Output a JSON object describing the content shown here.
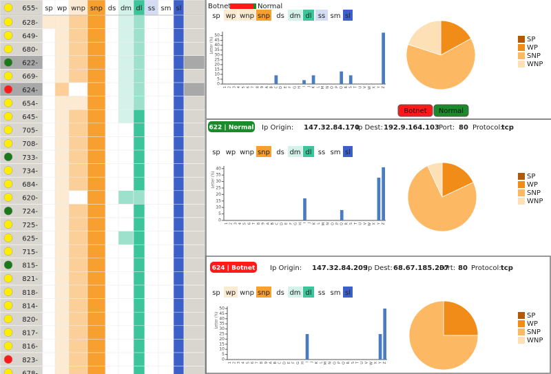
{
  "legend": {
    "botnet": "Botnet",
    "normal": "Normal",
    "botnet_color": "#ff1a1a",
    "normal_color": "#1a8a2a"
  },
  "filter_buttons": [
    {
      "label": "Botnet",
      "color": "#ff1a1a"
    },
    {
      "label": "Normal",
      "color": "#1a8a2a"
    }
  ],
  "table": {
    "columns": [
      "sp",
      "wp",
      "wnp",
      "snp",
      "ds",
      "dm",
      "dl",
      "ss",
      "sm",
      "sl"
    ],
    "column_colors": [
      "#f7a030",
      "#f7a030",
      "#f7a030",
      "#f7a030",
      "#3cc49a",
      "#3cc49a",
      "#3cc49a",
      "#3c60c8",
      "#3c60c8",
      "#3c60c8"
    ],
    "header": {
      "id": "655-",
      "status": "#ffee00",
      "levels": [
        0,
        0,
        1,
        3,
        0,
        1,
        3,
        1,
        0,
        3
      ]
    },
    "rows": [
      {
        "id": "628-",
        "status": "#ffee00",
        "levels": [
          1,
          1,
          2,
          3,
          0,
          1,
          2,
          0,
          0,
          3
        ]
      },
      {
        "id": "649-",
        "status": "#ffee00",
        "levels": [
          0,
          1,
          2,
          3,
          0,
          1,
          2,
          0,
          0,
          3
        ]
      },
      {
        "id": "680-",
        "status": "#ffee00",
        "levels": [
          0,
          1,
          2,
          3,
          0,
          1,
          2,
          0,
          0,
          3
        ]
      },
      {
        "id": "622-",
        "status": "#1a7a1a",
        "levels": [
          0,
          1,
          2,
          3,
          0,
          1,
          2,
          0,
          0,
          3
        ],
        "selected": true
      },
      {
        "id": "669-",
        "status": "#ffee00",
        "levels": [
          0,
          1,
          2,
          3,
          0,
          1,
          2,
          0,
          0,
          3
        ]
      },
      {
        "id": "624-",
        "status": "#ff1a1a",
        "levels": [
          0,
          2,
          0,
          3,
          0,
          1,
          2,
          0,
          0,
          3
        ],
        "selected": true
      },
      {
        "id": "654-",
        "status": "#ffee00",
        "levels": [
          0,
          1,
          1,
          3,
          0,
          1,
          2,
          0,
          0,
          3
        ]
      },
      {
        "id": "645-",
        "status": "#ffee00",
        "levels": [
          0,
          1,
          2,
          3,
          0,
          1,
          3,
          0,
          0,
          3
        ]
      },
      {
        "id": "705-",
        "status": "#ffee00",
        "levels": [
          0,
          1,
          2,
          3,
          0,
          0,
          3,
          0,
          0,
          3
        ]
      },
      {
        "id": "708-",
        "status": "#ffee00",
        "levels": [
          0,
          1,
          2,
          3,
          0,
          0,
          3,
          0,
          0,
          3
        ]
      },
      {
        "id": "733-",
        "status": "#1a7a1a",
        "levels": [
          0,
          1,
          2,
          3,
          0,
          0,
          3,
          0,
          0,
          3
        ]
      },
      {
        "id": "734-",
        "status": "#ffee00",
        "levels": [
          0,
          1,
          2,
          3,
          0,
          0,
          3,
          0,
          0,
          3
        ]
      },
      {
        "id": "684-",
        "status": "#ffee00",
        "levels": [
          0,
          1,
          2,
          3,
          0,
          0,
          3,
          0,
          0,
          3
        ]
      },
      {
        "id": "620-",
        "status": "#ffee00",
        "levels": [
          0,
          1,
          0,
          3,
          0,
          2,
          2,
          0,
          0,
          3
        ]
      },
      {
        "id": "724-",
        "status": "#1a7a1a",
        "levels": [
          0,
          1,
          2,
          3,
          0,
          0,
          3,
          0,
          0,
          3
        ]
      },
      {
        "id": "725-",
        "status": "#ffee00",
        "levels": [
          0,
          1,
          2,
          3,
          0,
          0,
          3,
          0,
          0,
          3
        ]
      },
      {
        "id": "625-",
        "status": "#ffee00",
        "levels": [
          0,
          1,
          2,
          3,
          0,
          2,
          3,
          0,
          0,
          3
        ]
      },
      {
        "id": "715-",
        "status": "#ffee00",
        "levels": [
          0,
          1,
          2,
          3,
          0,
          0,
          3,
          0,
          0,
          3
        ]
      },
      {
        "id": "815-",
        "status": "#1a7a1a",
        "levels": [
          0,
          1,
          2,
          3,
          0,
          0,
          3,
          0,
          0,
          3
        ]
      },
      {
        "id": "821-",
        "status": "#ffee00",
        "levels": [
          0,
          1,
          2,
          3,
          0,
          0,
          3,
          0,
          0,
          3
        ]
      },
      {
        "id": "818-",
        "status": "#ffee00",
        "levels": [
          0,
          1,
          2,
          3,
          0,
          0,
          3,
          0,
          0,
          3
        ]
      },
      {
        "id": "814-",
        "status": "#ffee00",
        "levels": [
          0,
          1,
          2,
          3,
          0,
          0,
          3,
          0,
          0,
          3
        ]
      },
      {
        "id": "820-",
        "status": "#ffee00",
        "levels": [
          0,
          1,
          2,
          3,
          0,
          0,
          3,
          0,
          0,
          3
        ]
      },
      {
        "id": "817-",
        "status": "#ffee00",
        "levels": [
          0,
          1,
          2,
          3,
          0,
          0,
          3,
          0,
          0,
          3
        ]
      },
      {
        "id": "816-",
        "status": "#ffee00",
        "levels": [
          0,
          1,
          2,
          3,
          0,
          0,
          3,
          0,
          0,
          3
        ]
      },
      {
        "id": "823-",
        "status": "#ff1a1a",
        "levels": [
          0,
          1,
          2,
          3,
          0,
          0,
          3,
          0,
          0,
          3
        ]
      },
      {
        "id": "678-",
        "status": "#ffee00",
        "levels": [
          0,
          1,
          2,
          3,
          0,
          0,
          3,
          0,
          0,
          3
        ]
      }
    ]
  },
  "panels": [
    {
      "toggle_levels": [
        0,
        1,
        1,
        2,
        0,
        1,
        2,
        1,
        0,
        2
      ]
    },
    {
      "toggle_levels": [
        0,
        0,
        0,
        2,
        0,
        1,
        2,
        0,
        0,
        2
      ]
    },
    {
      "toggle_levels": [
        0,
        1,
        0,
        2,
        0,
        1,
        2,
        0,
        0,
        2
      ]
    }
  ],
  "details": [
    {
      "badge": "622 | Normal",
      "color": "#1a8a2a",
      "fields": [
        {
          "label": "Ip Origin:",
          "value": "147.32.84.170"
        },
        {
          "label": "Ip Dest:",
          "value": "192.9.164.103"
        },
        {
          "label": "Port:",
          "value": "80"
        },
        {
          "label": "Protocol:",
          "value": "tcp"
        }
      ]
    },
    {
      "badge": "624 | Botnet",
      "color": "#ff1a1a",
      "fields": [
        {
          "label": "Ip Origin:",
          "value": "147.32.84.209"
        },
        {
          "label": "Ip Dest:",
          "value": "68.67.185.207"
        },
        {
          "label": "Port:",
          "value": "80"
        },
        {
          "label": "Protocol:",
          "value": "tcp"
        }
      ]
    }
  ],
  "chart_data": [
    {
      "type": "bar",
      "y_label": "Letter (%)",
      "color": "#4a7cc0",
      "categories": [
        "1",
        "2",
        "3",
        "4",
        "5",
        "6",
        "7",
        "8",
        "9",
        "A",
        "B",
        "C",
        "D",
        "E",
        "F",
        "G",
        "H",
        "I",
        "J",
        "K",
        "L",
        "M",
        "N",
        "O",
        "P",
        "Q",
        "R",
        "S",
        "T",
        "U",
        "V",
        "W",
        "X",
        "Y",
        "Z"
      ],
      "values": [
        0,
        0,
        0,
        0,
        0,
        0,
        0,
        0,
        0,
        0,
        0,
        9,
        0,
        0,
        0,
        0,
        0,
        4,
        0,
        9,
        0,
        0,
        0,
        0,
        0,
        13,
        0,
        9,
        0,
        0,
        0,
        0,
        0,
        0,
        53
      ],
      "ylim": [
        0,
        54
      ],
      "yticks": [
        0,
        5,
        10,
        15,
        20,
        25,
        30,
        35,
        40,
        45,
        50
      ]
    },
    {
      "type": "pie",
      "categories": [
        "SP",
        "WP",
        "SNP",
        "WNP"
      ],
      "values": [
        0,
        17,
        63,
        20
      ],
      "colors": [
        "#b35806",
        "#f28c18",
        "#fdb863",
        "#fee0b6"
      ]
    },
    {
      "type": "bar",
      "y_label": "Letter (%)",
      "color": "#4a7cc0",
      "categories": [
        "1",
        "2",
        "3",
        "4",
        "5",
        "6",
        "7",
        "8",
        "9",
        "A",
        "B",
        "C",
        "D",
        "E",
        "F",
        "G",
        "H",
        "I",
        "J",
        "K",
        "L",
        "M",
        "N",
        "O",
        "P",
        "Q",
        "R",
        "S",
        "T",
        "U",
        "V",
        "W",
        "X",
        "Y",
        "Z"
      ],
      "values": [
        0,
        0,
        0,
        0,
        0,
        0,
        0,
        0,
        0,
        0,
        0,
        0,
        0,
        0,
        0,
        0,
        0,
        17,
        0,
        0,
        0,
        0,
        0,
        0,
        0,
        8,
        0,
        0,
        0,
        0,
        0,
        0,
        0,
        33,
        41
      ],
      "ylim": [
        0,
        42
      ],
      "yticks": [
        0,
        5,
        10,
        15,
        20,
        25,
        30,
        35,
        40
      ]
    },
    {
      "type": "pie",
      "categories": [
        "SP",
        "WP",
        "SNP",
        "WNP"
      ],
      "values": [
        0,
        18,
        75,
        7
      ],
      "colors": [
        "#b35806",
        "#f28c18",
        "#fdb863",
        "#fee0b6"
      ]
    },
    {
      "type": "bar",
      "y_label": "Letter (%)",
      "color": "#4a7cc0",
      "categories": [
        "1",
        "2",
        "3",
        "4",
        "5",
        "6",
        "7",
        "8",
        "9",
        "A",
        "B",
        "C",
        "D",
        "E",
        "F",
        "G",
        "H",
        "I",
        "J",
        "K",
        "L",
        "M",
        "N",
        "O",
        "P",
        "Q",
        "R",
        "S",
        "T",
        "U",
        "V",
        "W",
        "X",
        "Y",
        "Z"
      ],
      "values": [
        0,
        0,
        0,
        0,
        0,
        0,
        0,
        0,
        0,
        0,
        0,
        0,
        0,
        0,
        0,
        0,
        0,
        25,
        0,
        0,
        0,
        0,
        0,
        0,
        0,
        0,
        0,
        0,
        0,
        0,
        0,
        0,
        0,
        25,
        50
      ],
      "ylim": [
        0,
        52
      ],
      "yticks": [
        0,
        5,
        10,
        15,
        20,
        25,
        30,
        35,
        40,
        45,
        50
      ]
    },
    {
      "type": "pie",
      "categories": [
        "SP",
        "WP",
        "SNP",
        "WNP"
      ],
      "values": [
        0,
        25,
        75,
        0
      ],
      "colors": [
        "#b35806",
        "#f28c18",
        "#fdb863",
        "#fee0b6"
      ]
    }
  ]
}
